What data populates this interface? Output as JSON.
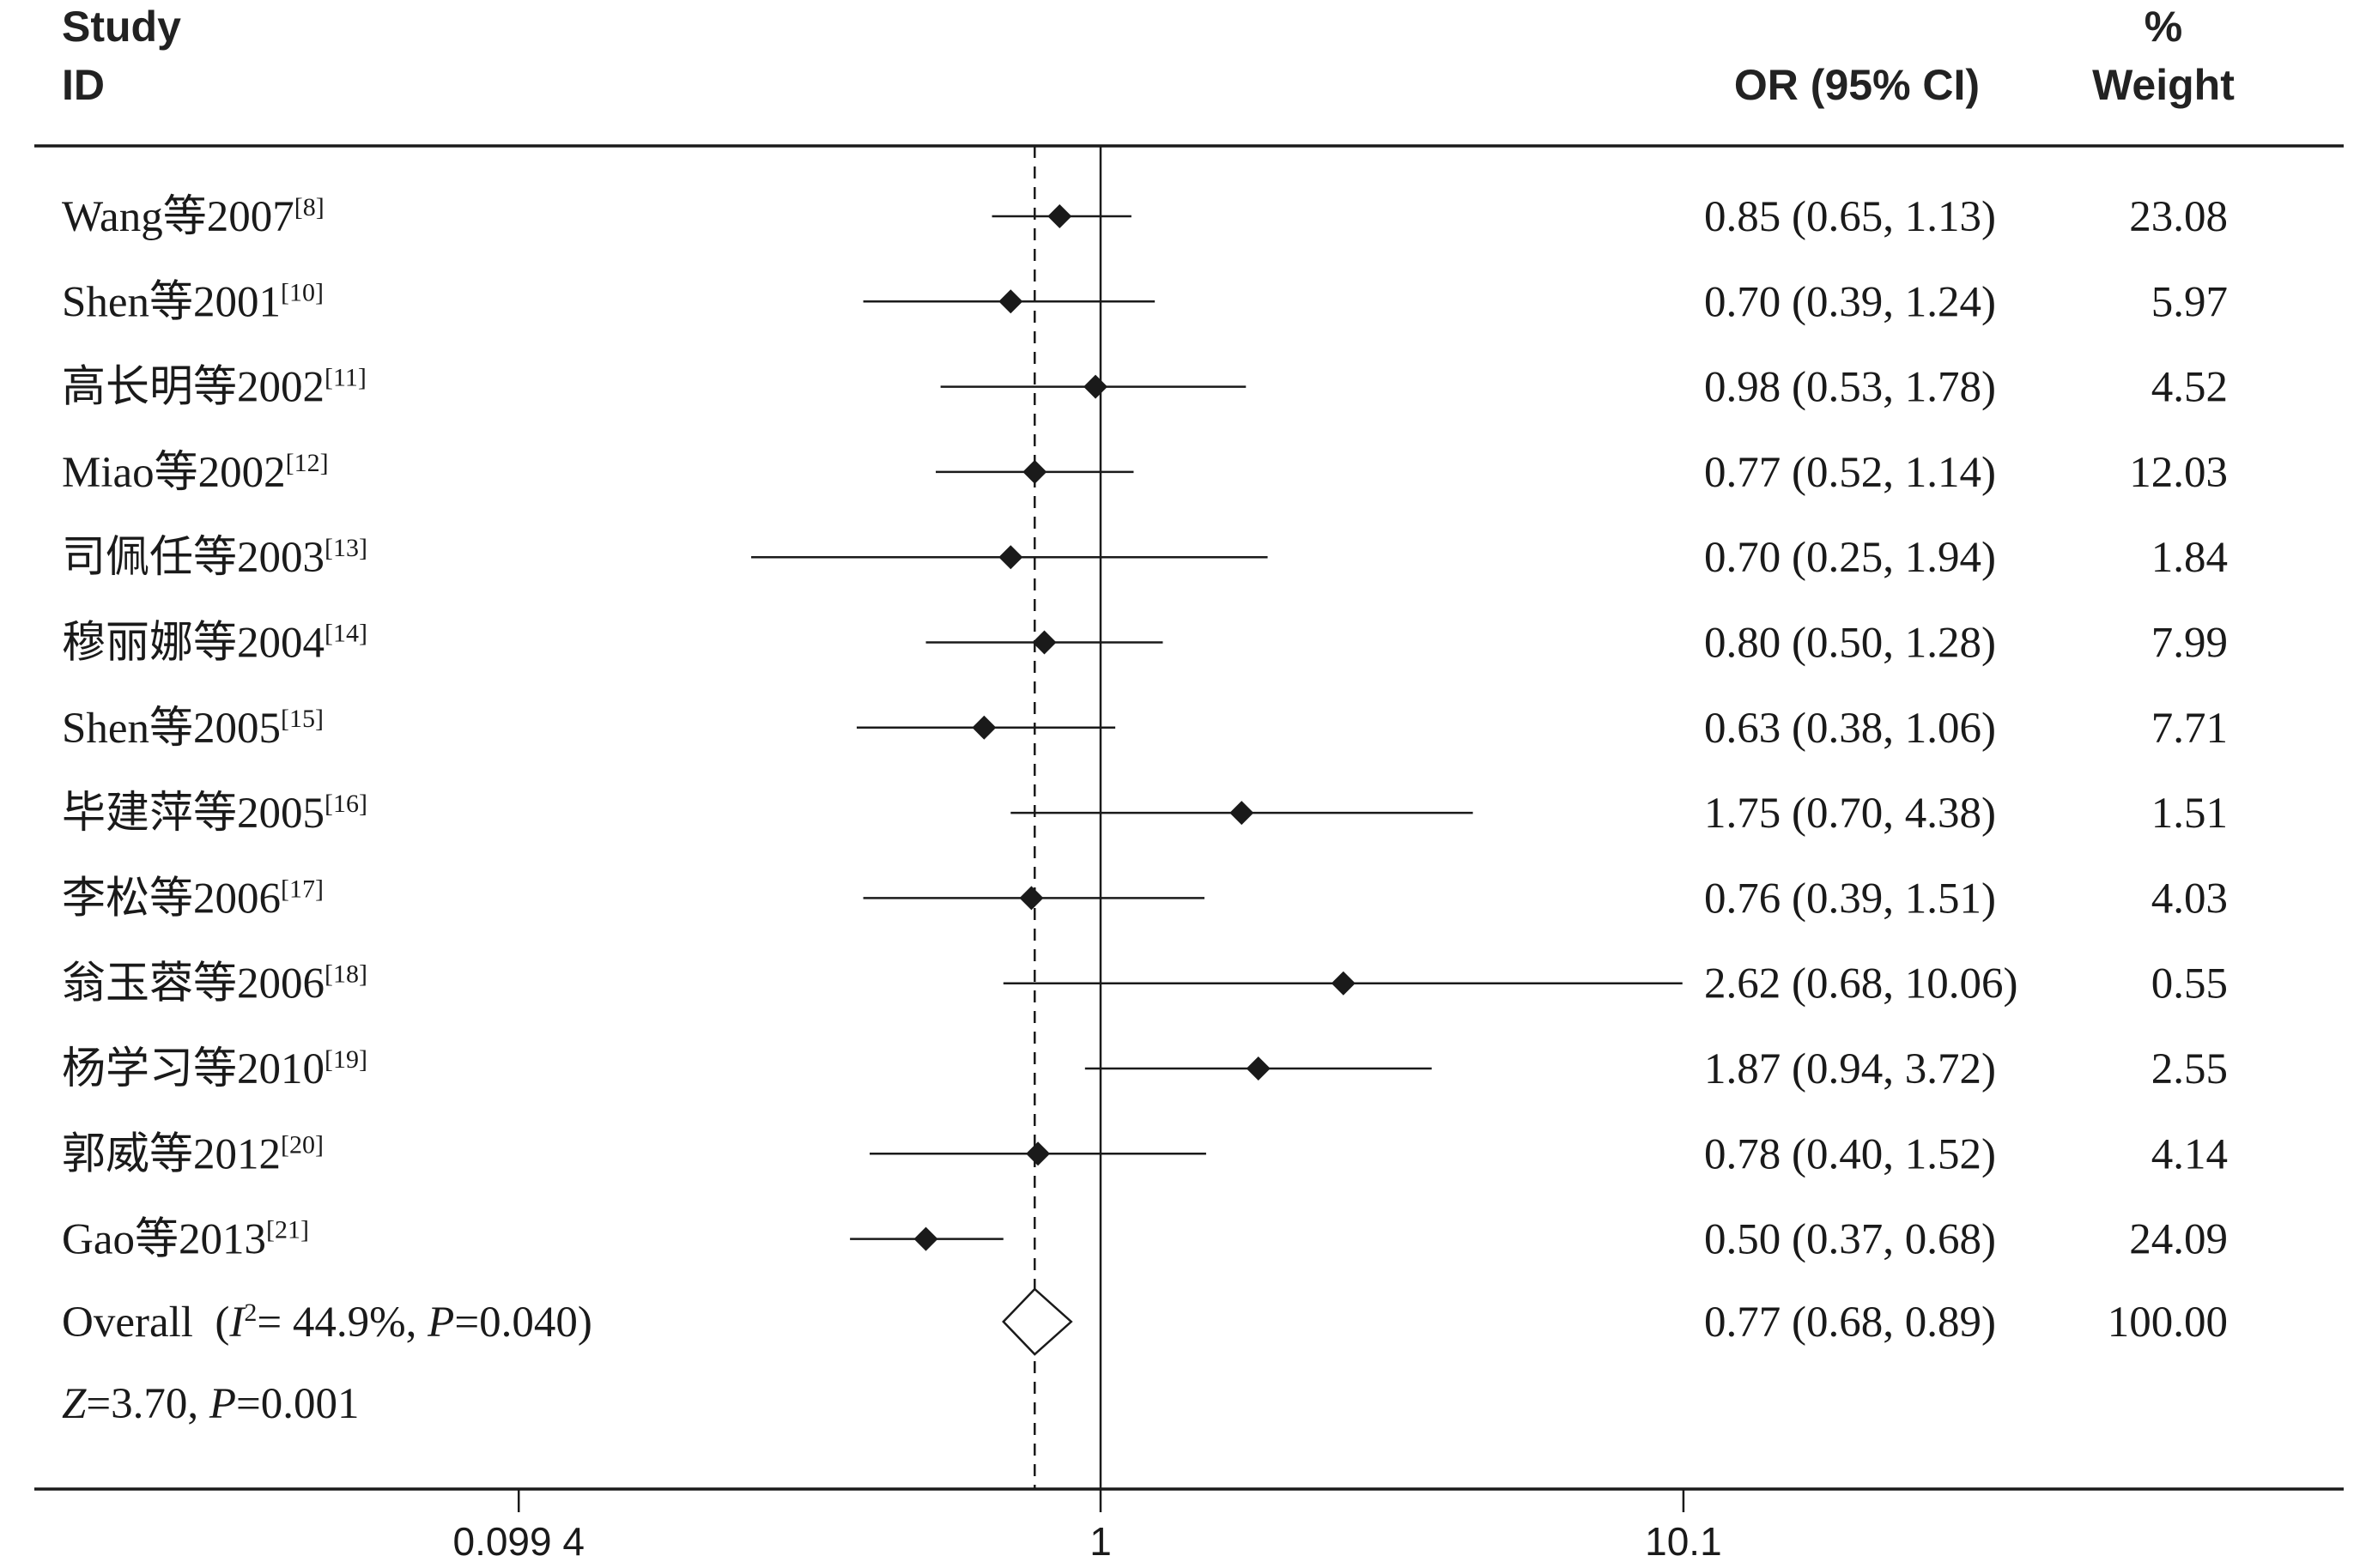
{
  "chart_data": {
    "type": "forest",
    "header": {
      "study_line1": "Study",
      "study_line2": "ID",
      "or_label": "OR (95% CI)",
      "weight_line1": "%",
      "weight_line2": "Weight"
    },
    "x_scale": "log",
    "null_value": 1,
    "x_ticks": [
      {
        "value": 0.0994,
        "label": "0.099 4"
      },
      {
        "value": 1,
        "label": "1"
      },
      {
        "value": 10.1,
        "label": "10.1"
      }
    ],
    "studies": [
      {
        "name": "Wang等2007",
        "ref": "[8]",
        "or": 0.85,
        "lo": 0.65,
        "hi": 1.13,
        "ci_text": "0.85 (0.65, 1.13)",
        "weight": "23.08"
      },
      {
        "name": "Shen等2001",
        "ref": "[10]",
        "or": 0.7,
        "lo": 0.39,
        "hi": 1.24,
        "ci_text": "0.70 (0.39, 1.24)",
        "weight": "5.97"
      },
      {
        "name": "高长明等2002",
        "ref": "[11]",
        "or": 0.98,
        "lo": 0.53,
        "hi": 1.78,
        "ci_text": "0.98 (0.53, 1.78)",
        "weight": "4.52"
      },
      {
        "name": "Miao等2002",
        "ref": "[12]",
        "or": 0.77,
        "lo": 0.52,
        "hi": 1.14,
        "ci_text": "0.77 (0.52, 1.14)",
        "weight": "12.03"
      },
      {
        "name": "司佩任等2003",
        "ref": "[13]",
        "or": 0.7,
        "lo": 0.25,
        "hi": 1.94,
        "ci_text": "0.70 (0.25, 1.94)",
        "weight": "1.84"
      },
      {
        "name": "穆丽娜等2004",
        "ref": "[14]",
        "or": 0.8,
        "lo": 0.5,
        "hi": 1.28,
        "ci_text": "0.80 (0.50, 1.28)",
        "weight": "7.99"
      },
      {
        "name": "Shen等2005",
        "ref": "[15]",
        "or": 0.63,
        "lo": 0.38,
        "hi": 1.06,
        "ci_text": "0.63 (0.38, 1.06)",
        "weight": "7.71"
      },
      {
        "name": "毕建萍等2005",
        "ref": "[16]",
        "or": 1.75,
        "lo": 0.7,
        "hi": 4.38,
        "ci_text": "1.75 (0.70, 4.38)",
        "weight": "1.51"
      },
      {
        "name": "李松等2006",
        "ref": "[17]",
        "or": 0.76,
        "lo": 0.39,
        "hi": 1.51,
        "ci_text": "0.76 (0.39, 1.51)",
        "weight": "4.03"
      },
      {
        "name": "翁玉蓉等2006",
        "ref": "[18]",
        "or": 2.62,
        "lo": 0.68,
        "hi": 10.06,
        "ci_text": "2.62 (0.68, 10.06)",
        "weight": "0.55"
      },
      {
        "name": "杨学习等2010",
        "ref": "[19]",
        "or": 1.87,
        "lo": 0.94,
        "hi": 3.72,
        "ci_text": "1.87 (0.94, 3.72)",
        "weight": "2.55"
      },
      {
        "name": "郭威等2012",
        "ref": "[20]",
        "or": 0.78,
        "lo": 0.4,
        "hi": 1.52,
        "ci_text": "0.78 (0.40, 1.52)",
        "weight": "4.14"
      },
      {
        "name": "Gao等2013",
        "ref": "[21]",
        "or": 0.5,
        "lo": 0.37,
        "hi": 0.68,
        "ci_text": "0.50 (0.37, 0.68)",
        "weight": "24.09"
      }
    ],
    "overall": {
      "label_prefix": "Overall  (",
      "i2_symbol": "I",
      "i2_exp": "2",
      "i2_rest": "= 44.9%, ",
      "p_symbol": "P",
      "p_rest": "=0.040)",
      "or": 0.77,
      "lo": 0.68,
      "hi": 0.89,
      "ci_text": "0.77 (0.68, 0.89)",
      "weight": "100.00"
    },
    "z_line": {
      "z_symbol": "Z",
      "z_rest": "=3.70, ",
      "p_symbol": "P",
      "p_rest": "=0.001"
    }
  }
}
